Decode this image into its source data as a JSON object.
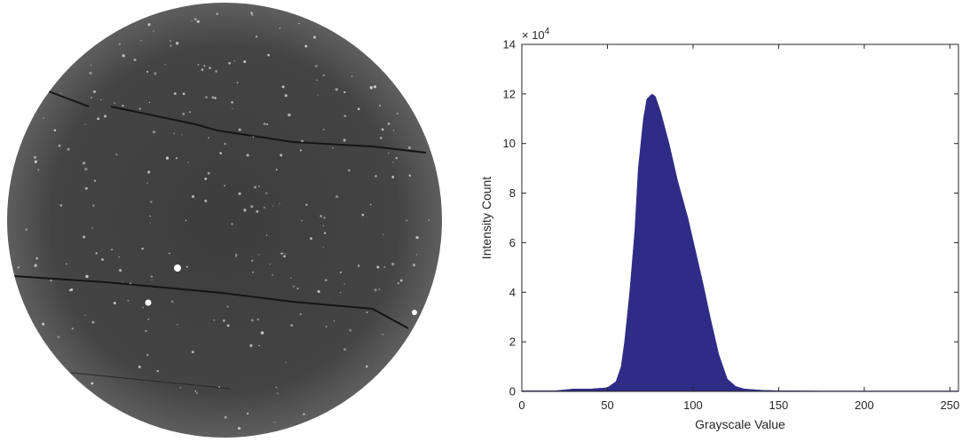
{
  "chart_data": {
    "type": "area",
    "x_label": "Grayscale Value",
    "y_label": "Intensity Count",
    "y_multiplier": "× 10",
    "y_multiplier_exponent": "4",
    "x": [
      0,
      10,
      20,
      30,
      40,
      50,
      55,
      58,
      60,
      63,
      66,
      68,
      71,
      73,
      76,
      78,
      81,
      86,
      91,
      97,
      102,
      106,
      110,
      115,
      120,
      125,
      130,
      140,
      150,
      175,
      200,
      225,
      255
    ],
    "values": [
      0.03,
      0.03,
      0.03,
      0.1,
      0.1,
      0.15,
      0.4,
      1,
      2,
      4,
      6.5,
      9,
      11,
      11.8,
      12,
      11.9,
      11.3,
      10,
      8.5,
      7,
      5.5,
      4.3,
      3,
      1.5,
      0.5,
      0.2,
      0.1,
      0.05,
      0.03,
      0.02,
      0.02,
      0.02,
      0.02
    ],
    "color": "#2e2c86",
    "xlim": [
      0,
      255
    ],
    "xticks": [
      0,
      50,
      100,
      150,
      200,
      250
    ],
    "ylim": [
      0,
      14
    ],
    "yticks": [
      0,
      2,
      4,
      6,
      8,
      10,
      12,
      14
    ],
    "grid": false
  }
}
